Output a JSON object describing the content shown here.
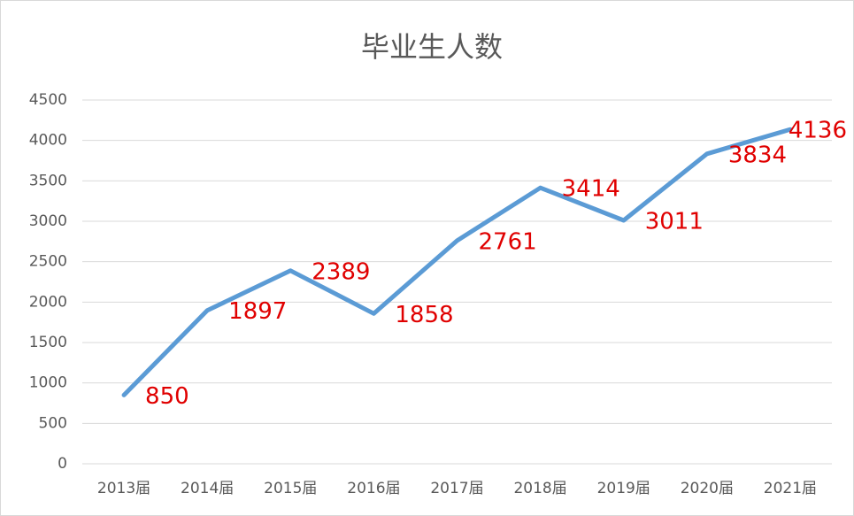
{
  "chart_data": {
    "type": "line",
    "title": "毕业生人数",
    "categories": [
      "2013届",
      "2014届",
      "2015届",
      "2016届",
      "2017届",
      "2018届",
      "2019届",
      "2020届",
      "2021届"
    ],
    "series": [
      {
        "name": "毕业生人数",
        "color": "#5b9bd5",
        "values": [
          850,
          1897,
          2389,
          1858,
          2761,
          3414,
          3011,
          3834,
          4136
        ]
      }
    ],
    "ylim": [
      0,
      4500
    ],
    "yticks": [
      0,
      500,
      1000,
      1500,
      2000,
      2500,
      3000,
      3500,
      4000,
      4500
    ],
    "grid": true,
    "data_label_color": "#e00000"
  }
}
